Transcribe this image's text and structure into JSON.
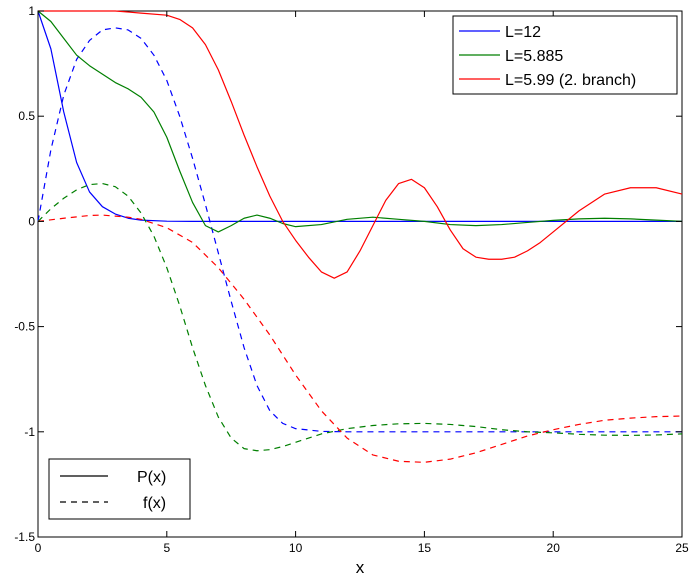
{
  "chart_data": {
    "type": "line",
    "title": "",
    "xlabel": "x",
    "ylabel": "",
    "xlim": [
      0,
      25
    ],
    "ylim": [
      -1.5,
      1
    ],
    "xticks": [
      0,
      5,
      10,
      15,
      20,
      25
    ],
    "yticks": [
      1,
      0.5,
      0,
      -0.5,
      -1,
      -1.5
    ],
    "xtick_labels": [
      "0",
      "5",
      "10",
      "15",
      "20",
      "25"
    ],
    "ytick_labels": [
      "1",
      "0.5",
      "0",
      "-0.5",
      "-1",
      "-1.5"
    ],
    "grid": false,
    "color_legend": {
      "placement": "top-right",
      "entries": [
        {
          "label": "L=12",
          "color": "#0000ff"
        },
        {
          "label": "L=5.885",
          "color": "#007f00"
        },
        {
          "label": "L=5.99 (2. branch)",
          "color": "#ff0000"
        }
      ]
    },
    "style_legend": {
      "placement": "bottom-left",
      "entries": [
        {
          "label": "P(x)",
          "dash": "solid"
        },
        {
          "label": "f(x)",
          "dash": "dashed"
        }
      ]
    },
    "series": [
      {
        "color": "#0000ff",
        "dash": "solid",
        "x": [
          0,
          0.5,
          1,
          1.5,
          2,
          2.5,
          3,
          3.5,
          4,
          5,
          6,
          8,
          10,
          15,
          20,
          25
        ],
        "y": [
          1,
          0.82,
          0.52,
          0.28,
          0.14,
          0.07,
          0.035,
          0.015,
          0.006,
          0.001,
          0,
          0,
          0,
          0,
          0,
          0
        ]
      },
      {
        "color": "#0000ff",
        "dash": "dashed",
        "x": [
          0,
          0.5,
          1,
          1.5,
          2,
          2.5,
          3,
          3.5,
          4,
          4.5,
          5,
          5.5,
          6,
          6.5,
          7,
          7.5,
          8,
          8.5,
          9,
          9.5,
          10,
          11,
          12,
          15,
          20,
          25
        ],
        "y": [
          0,
          0.34,
          0.6,
          0.77,
          0.86,
          0.91,
          0.92,
          0.91,
          0.87,
          0.79,
          0.67,
          0.5,
          0.3,
          0.08,
          -0.15,
          -0.38,
          -0.6,
          -0.78,
          -0.9,
          -0.96,
          -0.985,
          -0.998,
          -1,
          -1,
          -1,
          -1
        ]
      },
      {
        "color": "#007f00",
        "dash": "solid",
        "x": [
          0,
          0.5,
          1,
          1.5,
          2,
          2.5,
          3,
          3.5,
          4,
          4.5,
          5,
          5.5,
          6,
          6.5,
          7,
          7.5,
          8,
          8.5,
          9,
          9.5,
          10,
          11,
          12,
          13,
          14,
          15,
          16,
          17,
          18,
          19,
          20,
          21,
          22,
          23,
          24,
          25
        ],
        "y": [
          1,
          0.95,
          0.87,
          0.79,
          0.74,
          0.7,
          0.66,
          0.63,
          0.59,
          0.52,
          0.4,
          0.24,
          0.09,
          -0.02,
          -0.05,
          -0.02,
          0.015,
          0.03,
          0.015,
          -0.01,
          -0.025,
          -0.015,
          0.01,
          0.02,
          0.01,
          0,
          -0.015,
          -0.02,
          -0.015,
          -0.005,
          0.005,
          0.012,
          0.015,
          0.012,
          0.006,
          0
        ]
      },
      {
        "color": "#007f00",
        "dash": "dashed",
        "x": [
          0,
          0.5,
          1,
          1.5,
          2,
          2.5,
          3,
          3.5,
          4,
          4.5,
          5,
          5.5,
          6,
          6.5,
          7,
          7.5,
          8,
          8.5,
          9,
          9.5,
          10,
          11,
          12,
          13,
          14,
          15,
          16,
          17,
          18,
          19,
          20,
          21,
          22,
          23,
          24,
          25
        ],
        "y": [
          0,
          0.06,
          0.11,
          0.15,
          0.175,
          0.18,
          0.165,
          0.12,
          0.04,
          -0.07,
          -0.22,
          -0.4,
          -0.6,
          -0.78,
          -0.93,
          -1.03,
          -1.08,
          -1.09,
          -1.085,
          -1.07,
          -1.05,
          -1.01,
          -0.985,
          -0.97,
          -0.962,
          -0.96,
          -0.965,
          -0.975,
          -0.99,
          -1.0,
          -1.005,
          -1.012,
          -1.016,
          -1.017,
          -1.015,
          -1.01
        ]
      },
      {
        "color": "#ff0000",
        "dash": "solid",
        "x": [
          0,
          1,
          2,
          3,
          4,
          5,
          5.5,
          6,
          6.5,
          7,
          7.5,
          8,
          8.5,
          9,
          9.5,
          10,
          10.5,
          11,
          11.5,
          12,
          12.5,
          13,
          13.5,
          14,
          14.5,
          15,
          15.5,
          16,
          16.5,
          17,
          17.5,
          18,
          18.5,
          19,
          19.5,
          20,
          21,
          22,
          23,
          24,
          25
        ],
        "y": [
          1,
          1,
          1,
          1,
          0.99,
          0.98,
          0.96,
          0.92,
          0.84,
          0.72,
          0.57,
          0.41,
          0.26,
          0.12,
          0.0,
          -0.09,
          -0.17,
          -0.24,
          -0.27,
          -0.24,
          -0.14,
          -0.02,
          0.1,
          0.18,
          0.2,
          0.16,
          0.07,
          -0.04,
          -0.13,
          -0.17,
          -0.18,
          -0.18,
          -0.17,
          -0.14,
          -0.1,
          -0.05,
          0.05,
          0.13,
          0.16,
          0.16,
          0.13
        ]
      },
      {
        "color": "#ff0000",
        "dash": "dashed",
        "x": [
          0,
          1,
          2,
          2.5,
          3,
          3.5,
          4,
          5,
          6,
          7,
          8,
          9,
          10,
          11,
          12,
          13,
          14,
          15,
          16,
          17,
          18,
          19,
          20,
          21,
          22,
          23,
          24,
          25
        ],
        "y": [
          0,
          0.015,
          0.028,
          0.03,
          0.025,
          0.02,
          0.01,
          -0.03,
          -0.1,
          -0.22,
          -0.37,
          -0.54,
          -0.73,
          -0.9,
          -1.03,
          -1.11,
          -1.14,
          -1.145,
          -1.13,
          -1.1,
          -1.06,
          -1.02,
          -0.99,
          -0.965,
          -0.945,
          -0.935,
          -0.928,
          -0.925
        ]
      }
    ]
  }
}
